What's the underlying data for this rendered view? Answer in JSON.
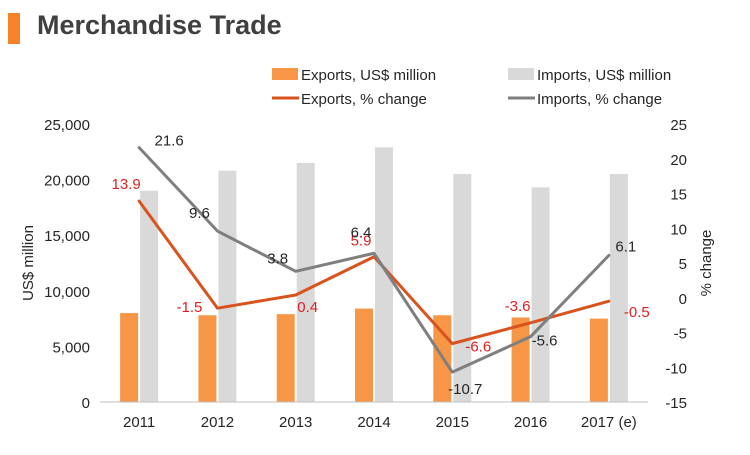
{
  "page": {
    "title": "Merchandise Trade",
    "accent_color": "#f7822a"
  },
  "chart_data": {
    "type": "bar",
    "categories": [
      "2011",
      "2012",
      "2013",
      "2014",
      "2015",
      "2016",
      "2017 (e)"
    ],
    "ylabel_left": "US$ million",
    "ylabel_right": "% change",
    "ylim_left": [
      0,
      25000
    ],
    "yticks_left": [
      "0",
      "5,000",
      "10,000",
      "15,000",
      "20,000",
      "25,000"
    ],
    "ylim_right": [
      -15,
      25
    ],
    "yticks_right": [
      "-15",
      "-10",
      "-5",
      "0",
      "5",
      "10",
      "15",
      "20",
      "25"
    ],
    "grid": false,
    "legend_position": "top",
    "series": [
      {
        "name": "Exports, US$ million",
        "kind": "bar",
        "axis": "left",
        "color": "#f79646",
        "values": [
          8000,
          7800,
          7900,
          8400,
          7800,
          7600,
          7500
        ]
      },
      {
        "name": "Imports, US$ million",
        "kind": "bar",
        "axis": "left",
        "color": "#d9d9d9",
        "values": [
          19000,
          20800,
          21500,
          22900,
          20500,
          19300,
          20500
        ]
      },
      {
        "name": "Exports, % change",
        "kind": "line",
        "axis": "right",
        "color": "#d9531e",
        "label_color": "#e02020",
        "values": [
          13.9,
          -1.5,
          0.4,
          5.9,
          -6.6,
          -3.6,
          -0.5
        ],
        "labels": [
          "13.9",
          "-1.5",
          "0.4",
          "5.9",
          "-6.6",
          "-3.6",
          "-0.5"
        ]
      },
      {
        "name": "Imports, % change",
        "kind": "line",
        "axis": "right",
        "color": "#7f7f7f",
        "label_color": "#262626",
        "values": [
          21.6,
          9.6,
          3.8,
          6.4,
          -10.7,
          -5.6,
          6.1
        ],
        "labels": [
          "21.6",
          "9.6",
          "3.8",
          "6.4",
          "-10.7",
          "-5.6",
          "6.1"
        ]
      }
    ]
  }
}
